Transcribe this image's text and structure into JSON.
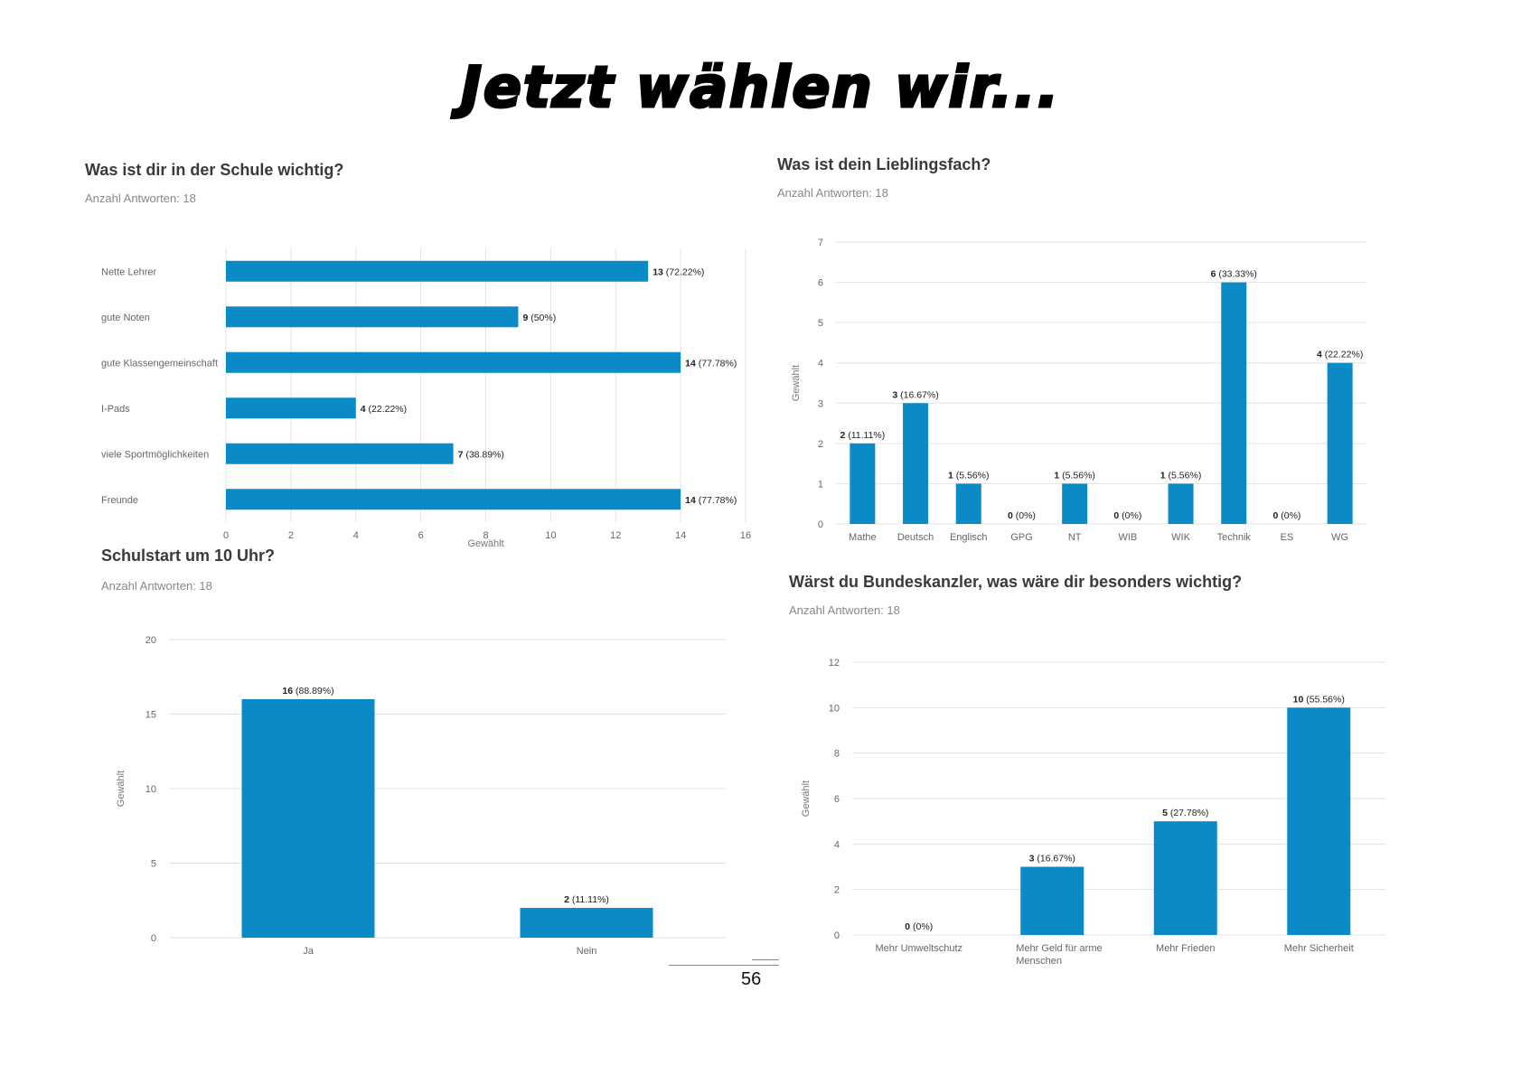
{
  "page": {
    "title": "Jetzt wählen wir...",
    "page_number": "56"
  },
  "colors": {
    "bar": "#0a8bc7",
    "grid": "#e3e3e3"
  },
  "chart_data": [
    {
      "id": "schule",
      "type": "bar",
      "orientation": "horizontal",
      "title": "Was ist dir in der Schule wichtig?",
      "subtitle": "Anzahl Antworten: 18",
      "categories": [
        "Nette Lehrer",
        "gute Noten",
        "gute Klassengemeinschaft",
        "I-Pads",
        "viele Sportmöglichkeiten",
        "Freunde"
      ],
      "values": [
        13,
        9,
        14,
        4,
        7,
        14
      ],
      "labels": [
        "(72.22%)",
        "(50%)",
        "(77.78%)",
        "(22.22%)",
        "(38.89%)",
        "(77.78%)"
      ],
      "xlabel": "Gewählt",
      "xlim": [
        0,
        16
      ],
      "xticks": [
        0,
        2,
        4,
        6,
        8,
        10,
        12,
        14,
        16
      ],
      "grid": true
    },
    {
      "id": "fach",
      "type": "bar",
      "orientation": "vertical",
      "title": "Was ist dein Lieblingsfach?",
      "subtitle": "Anzahl Antworten: 18",
      "categories": [
        "Mathe",
        "Deutsch",
        "Englisch",
        "GPG",
        "NT",
        "WIB",
        "WIK",
        "Technik",
        "ES",
        "WG"
      ],
      "values": [
        2,
        3,
        1,
        0,
        1,
        0,
        1,
        6,
        0,
        4
      ],
      "labels": [
        "(11.11%)",
        "(16.67%)",
        "(5.56%)",
        "(0%)",
        "(5.56%)",
        "(0%)",
        "(5.56%)",
        "(33.33%)",
        "(0%)",
        "(22.22%)"
      ],
      "ylabel": "Gewählt",
      "ylim": [
        0,
        7
      ],
      "yticks": [
        0,
        1,
        2,
        3,
        4,
        5,
        6,
        7
      ],
      "grid": true
    },
    {
      "id": "schulstart",
      "type": "bar",
      "orientation": "vertical",
      "title": "Schulstart um 10 Uhr?",
      "subtitle": "Anzahl Antworten: 18",
      "categories": [
        "Ja",
        "Nein"
      ],
      "values": [
        16,
        2
      ],
      "labels": [
        "(88.89%)",
        "(11.11%)"
      ],
      "ylabel": "Gewählt",
      "ylim": [
        0,
        20
      ],
      "yticks": [
        0,
        5,
        10,
        15,
        20
      ],
      "grid": true
    },
    {
      "id": "kanzler",
      "type": "bar",
      "orientation": "vertical",
      "title": "Wärst du Bundeskanzler, was wäre dir besonders wichtig?",
      "subtitle": "Anzahl Antworten: 18",
      "categories": [
        "Mehr Umweltschutz",
        "Mehr Geld für arme Menschen",
        "Mehr Frieden",
        "Mehr Sicherheit"
      ],
      "values": [
        0,
        3,
        5,
        10
      ],
      "labels": [
        "(0%)",
        "(16.67%)",
        "(27.78%)",
        "(55.56%)"
      ],
      "ylabel": "Gewählt",
      "ylim": [
        0,
        12
      ],
      "yticks": [
        0,
        2,
        4,
        6,
        8,
        10,
        12
      ],
      "grid": true
    }
  ]
}
